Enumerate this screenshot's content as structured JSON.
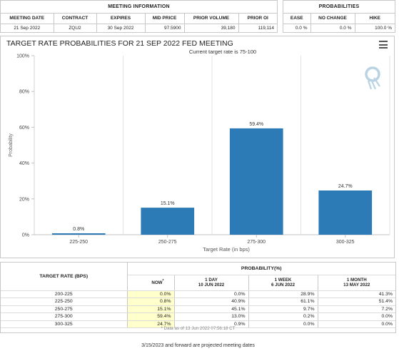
{
  "meeting_info": {
    "title": "MEETING INFORMATION",
    "headers": [
      "MEETING DATE",
      "CONTRACT",
      "EXPIRES",
      "MID PRICE",
      "PRIOR VOLUME",
      "PRIOR OI"
    ],
    "values": [
      "21 Sep 2022",
      "ZQU2",
      "30 Sep 2022",
      "97.5900",
      "39,180",
      "119,114"
    ]
  },
  "probabilities": {
    "title": "PROBABILITIES",
    "headers": [
      "EASE",
      "NO CHANGE",
      "HIKE"
    ],
    "values": [
      "0.0 %",
      "0.0 %",
      "100.0 %"
    ]
  },
  "chart_data": {
    "type": "bar",
    "title": "TARGET RATE PROBABILITIES FOR 21 SEP 2022 FED MEETING",
    "subtitle": "Current target rate is 75-100",
    "xlabel": "Target Rate (in bps)",
    "ylabel": "Probability",
    "categories": [
      "225-250",
      "250-275",
      "275-300",
      "300-325"
    ],
    "values": [
      0.8,
      15.1,
      59.4,
      24.7
    ],
    "data_labels": [
      "0.8%",
      "15.1%",
      "59.4%",
      "24.7%"
    ],
    "ylim": [
      0,
      100
    ],
    "yticks": [
      0,
      20,
      40,
      60,
      80,
      100
    ],
    "ytick_labels": [
      "0%",
      "20%",
      "40%",
      "60%",
      "80%",
      "100%"
    ],
    "bar_color": "#2c7bb6",
    "grid": "vertical category separators"
  },
  "prob_table": {
    "group_title": "PROBABILITY(%)",
    "rate_header": "TARGET RATE (BPS)",
    "columns": [
      {
        "label": "NOW",
        "sup": "*",
        "date": ""
      },
      {
        "label": "1 DAY",
        "date": "10 JUN 2022"
      },
      {
        "label": "1 WEEK",
        "date": "6 JUN 2022"
      },
      {
        "label": "1 MONTH",
        "date": "13 MAY 2022"
      }
    ],
    "rows": [
      {
        "rate": "200-225",
        "values": [
          "0.0%",
          "0.0%",
          "28.9%",
          "41.3%"
        ]
      },
      {
        "rate": "225-250",
        "values": [
          "0.8%",
          "40.9%",
          "61.1%",
          "51.4%"
        ]
      },
      {
        "rate": "250-275",
        "values": [
          "15.1%",
          "45.1%",
          "9.7%",
          "7.2%"
        ]
      },
      {
        "rate": "275-300",
        "values": [
          "59.4%",
          "13.0%",
          "0.2%",
          "0.0%"
        ]
      },
      {
        "rate": "300-325",
        "values": [
          "24.7%",
          "0.9%",
          "0.0%",
          "0.0%"
        ]
      }
    ],
    "footnote": "* Data as of 13 Jun 2022 07:56:18 CT"
  },
  "footer_note": "3/15/2023 and forward are projected meeting dates",
  "icons": {
    "menu": "hamburger-menu-icon",
    "logo": "quikstrike-q-logo"
  }
}
